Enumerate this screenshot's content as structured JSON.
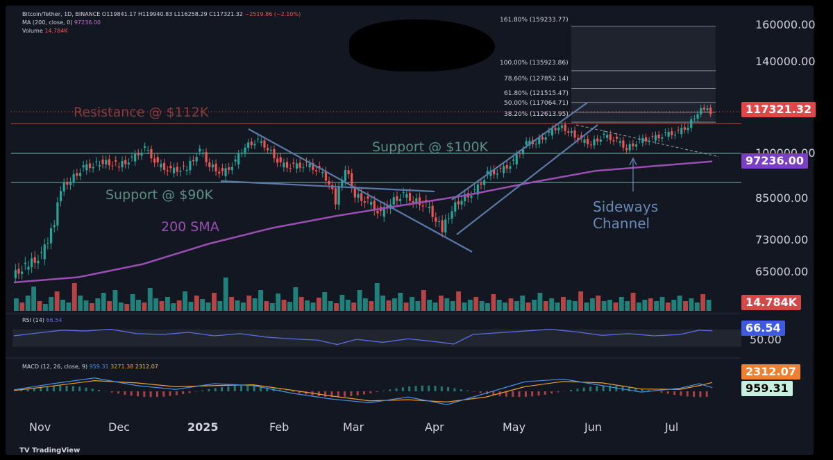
{
  "chart_data": {
    "type": "candlestick",
    "title": "Bitcoin/Tether, 1D, BINANCE",
    "ohlc": {
      "open": "O119841.17",
      "high": "H119940.83",
      "low": "L116258.29",
      "close": "C117321.32",
      "change": "−2519.86 (−2.10%)"
    },
    "ma_legend": {
      "label": "MA (200, close, 0)",
      "value": "97236.00"
    },
    "volume_legend": {
      "label": "Volume",
      "value": "14.784K"
    },
    "y_ticks": [
      "160000.00",
      "140000.00",
      "100000.00",
      "85000.00",
      "73000.00",
      "65000.00"
    ],
    "y_tick_values": [
      160000,
      140000,
      100000,
      85000,
      73000,
      65000
    ],
    "x_ticks": [
      "Nov",
      "Dec",
      "2025",
      "Feb",
      "Mar",
      "Apr",
      "May",
      "Jun",
      "Jul"
    ],
    "price_tags": {
      "last": "117321.32",
      "ma": "97236.00",
      "volume": "14.784K",
      "rsi": "66.54",
      "macd_signal": "2312.07",
      "macd": "959.31"
    },
    "horizontal_levels": [
      {
        "label": "Resistance @ $112K",
        "value": 112000
      },
      {
        "label": "Support @ $100K",
        "value": 100000
      },
      {
        "label": "Support @ $90K",
        "value": 90000
      }
    ],
    "annotations": [
      "200 SMA",
      "Sideways",
      "Channel"
    ],
    "fibonacci": [
      {
        "label": "161.80% (159233.77)",
        "value": 159233.77
      },
      {
        "label": "100.00% (135923.86)",
        "value": 135923.86
      },
      {
        "label": "78.60% (127852.14)",
        "value": 127852.14
      },
      {
        "label": "61.80% (121515.47)",
        "value": 121515.47
      },
      {
        "label": "50.00% (117064.71)",
        "value": 117064.71
      },
      {
        "label": "38.20% (112613.95)",
        "value": 112613.95
      }
    ],
    "price_path": [
      [
        0,
        64000
      ],
      [
        5,
        67000
      ],
      [
        9,
        69000
      ],
      [
        11,
        73000
      ],
      [
        13,
        78000
      ],
      [
        15,
        88000
      ],
      [
        18,
        91000
      ],
      [
        22,
        95000
      ],
      [
        28,
        97000
      ],
      [
        33,
        96000
      ],
      [
        37,
        98000
      ],
      [
        41,
        102000
      ],
      [
        45,
        96000
      ],
      [
        49,
        94000
      ],
      [
        54,
        95000
      ],
      [
        58,
        101000
      ],
      [
        61,
        96000
      ],
      [
        65,
        93000
      ],
      [
        69,
        97000
      ],
      [
        72,
        103000
      ],
      [
        76,
        105000
      ],
      [
        79,
        102000
      ],
      [
        83,
        96000
      ],
      [
        87,
        95500
      ],
      [
        91,
        96000
      ],
      [
        95,
        94000
      ],
      [
        98,
        90000
      ],
      [
        100,
        84000
      ],
      [
        103,
        95000
      ],
      [
        106,
        86000
      ],
      [
        110,
        84000
      ],
      [
        114,
        80500
      ],
      [
        117,
        84000
      ],
      [
        121,
        86000
      ],
      [
        124,
        84500
      ],
      [
        128,
        83000
      ],
      [
        131,
        79000
      ],
      [
        133,
        76000
      ],
      [
        136,
        82000
      ],
      [
        139,
        85000
      ],
      [
        143,
        87000
      ],
      [
        147,
        93000
      ],
      [
        151,
        94000
      ],
      [
        155,
        97000
      ],
      [
        159,
        104000
      ],
      [
        162,
        104500
      ],
      [
        166,
        108000
      ],
      [
        169,
        111000
      ],
      [
        172,
        109000
      ],
      [
        176,
        105000
      ],
      [
        179,
        104000
      ],
      [
        183,
        107000
      ],
      [
        187,
        105000
      ],
      [
        190,
        102000
      ],
      [
        194,
        105000
      ],
      [
        198,
        106000
      ],
      [
        202,
        107500
      ],
      [
        206,
        108500
      ],
      [
        209,
        111000
      ],
      [
        212,
        117000
      ],
      [
        214,
        119000
      ],
      [
        216,
        117000
      ]
    ],
    "sma200_path": [
      [
        0,
        62000
      ],
      [
        20,
        63500
      ],
      [
        40,
        67000
      ],
      [
        60,
        72000
      ],
      [
        80,
        76500
      ],
      [
        100,
        80000
      ],
      [
        120,
        83000
      ],
      [
        140,
        86000
      ],
      [
        160,
        90000
      ],
      [
        180,
        94000
      ],
      [
        200,
        95800
      ],
      [
        216,
        97236
      ]
    ],
    "volume_bars": [
      18,
      12,
      22,
      35,
      14,
      10,
      20,
      28,
      16,
      12,
      40,
      22,
      15,
      11,
      18,
      26,
      14,
      30,
      12,
      10,
      24,
      16,
      12,
      33,
      18,
      14,
      20,
      11,
      15,
      28,
      13,
      22,
      17,
      12,
      26,
      14,
      48,
      20,
      15,
      12,
      22,
      18,
      30,
      14,
      11,
      25,
      16,
      13,
      34,
      20,
      15,
      12,
      19,
      27,
      14,
      11,
      23,
      16,
      12,
      30,
      18,
      14,
      40,
      22,
      15,
      18,
      26,
      12,
      20,
      14,
      30,
      16,
      12,
      22,
      18,
      14,
      28,
      12,
      16,
      20,
      14,
      11,
      24,
      16,
      12,
      18,
      14,
      22,
      12,
      16,
      26,
      14,
      18,
      12,
      20,
      16,
      14,
      28,
      12,
      18,
      22,
      14,
      16,
      12,
      20,
      14,
      26,
      12,
      16,
      18,
      14,
      20,
      12,
      16,
      22,
      14,
      18,
      12,
      24,
      16
    ],
    "rsi_path": [
      [
        0,
        55
      ],
      [
        8,
        62
      ],
      [
        15,
        68
      ],
      [
        22,
        66
      ],
      [
        30,
        70
      ],
      [
        38,
        60
      ],
      [
        46,
        58
      ],
      [
        54,
        63
      ],
      [
        62,
        55
      ],
      [
        70,
        60
      ],
      [
        78,
        52
      ],
      [
        86,
        48
      ],
      [
        94,
        45
      ],
      [
        100,
        35
      ],
      [
        106,
        47
      ],
      [
        114,
        40
      ],
      [
        122,
        48
      ],
      [
        130,
        42
      ],
      [
        136,
        36
      ],
      [
        142,
        58
      ],
      [
        150,
        62
      ],
      [
        158,
        66
      ],
      [
        166,
        70
      ],
      [
        174,
        64
      ],
      [
        182,
        56
      ],
      [
        190,
        60
      ],
      [
        198,
        55
      ],
      [
        206,
        58
      ],
      [
        212,
        68
      ],
      [
        216,
        66.54
      ]
    ],
    "macd_path": [
      [
        0,
        400
      ],
      [
        12,
        2000
      ],
      [
        25,
        3500
      ],
      [
        38,
        1500
      ],
      [
        50,
        500
      ],
      [
        62,
        2000
      ],
      [
        74,
        1500
      ],
      [
        86,
        -500
      ],
      [
        98,
        -2000
      ],
      [
        110,
        -3000
      ],
      [
        122,
        -1500
      ],
      [
        134,
        -3500
      ],
      [
        146,
        -500
      ],
      [
        158,
        2500
      ],
      [
        170,
        3200
      ],
      [
        182,
        1500
      ],
      [
        194,
        -200
      ],
      [
        206,
        800
      ],
      [
        212,
        2000
      ],
      [
        216,
        959.31
      ]
    ],
    "signal_path": [
      [
        0,
        200
      ],
      [
        12,
        1400
      ],
      [
        25,
        2800
      ],
      [
        38,
        2200
      ],
      [
        50,
        1200
      ],
      [
        62,
        1500
      ],
      [
        74,
        1700
      ],
      [
        86,
        300
      ],
      [
        98,
        -1200
      ],
      [
        110,
        -2500
      ],
      [
        122,
        -2200
      ],
      [
        134,
        -2800
      ],
      [
        146,
        -1500
      ],
      [
        158,
        1200
      ],
      [
        170,
        2600
      ],
      [
        182,
        2200
      ],
      [
        194,
        600
      ],
      [
        206,
        500
      ],
      [
        212,
        1500
      ],
      [
        216,
        2312.07
      ]
    ]
  },
  "indicators": {
    "rsi_label": "RSI (14)",
    "rsi_value": "66.54",
    "rsi_tick": "50.00",
    "macd_label": "MACD (12, 26, close, 9)",
    "macd_v1": "959.31",
    "macd_v2": "3271.38",
    "macd_v3": "2312.07"
  },
  "brand": {
    "name": "TradingView",
    "logo": "tradingview-logo"
  },
  "colors": {
    "up": "#26a69a",
    "down": "#ef5350",
    "sma": "#9b4fb5",
    "level_red": "#7a2a2a",
    "level_green": "#3d6b62",
    "trend": "#5b7aa8",
    "rsi": "#5b6ee8",
    "macd": "#4a90e2",
    "signal": "#f0a030"
  }
}
